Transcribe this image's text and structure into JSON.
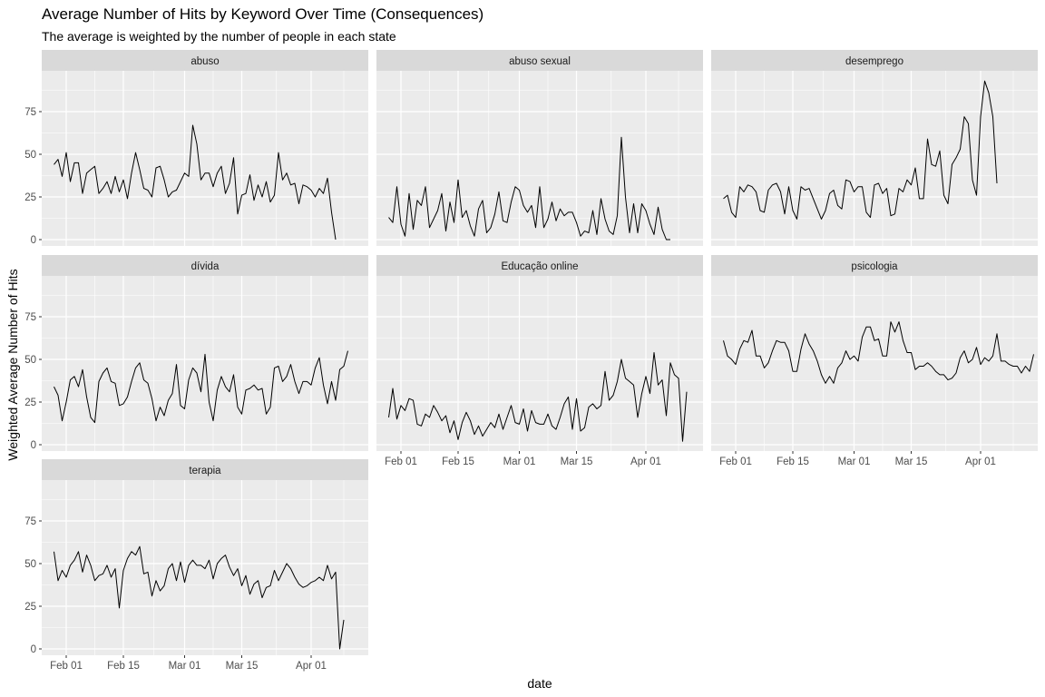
{
  "chart_data": {
    "type": "line",
    "title": "Average Number of Hits by Keyword Over Time (Consequences)",
    "subtitle": "The average is weighted by the number of people in each state",
    "xlabel": "date",
    "ylabel": "Weighted Average Number of Hits",
    "x_start": "2020-01-29",
    "x_ticks": [
      {
        "label": "Feb 01",
        "date": "2020-02-01"
      },
      {
        "label": "Feb 15",
        "date": "2020-02-15"
      },
      {
        "label": "Mar 01",
        "date": "2020-03-01"
      },
      {
        "label": "Mar 15",
        "date": "2020-03-15"
      },
      {
        "label": "Apr 01",
        "date": "2020-04-01"
      }
    ],
    "y_ticks": [
      0,
      25,
      50,
      75
    ],
    "ylim": [
      -3,
      100
    ],
    "grid": true,
    "series_color": "#000000",
    "panel_background": "#ebebeb",
    "strip_background": "#d9d9d9",
    "panels": [
      {
        "name": "abuso",
        "values": [
          44,
          47,
          37,
          51,
          34,
          45,
          45,
          27,
          39,
          41,
          43,
          27,
          30,
          34,
          27,
          37,
          28,
          35,
          24,
          39,
          51,
          41,
          30,
          29,
          25,
          42,
          43,
          35,
          25,
          28,
          29,
          34,
          39,
          37,
          67,
          56,
          35,
          39,
          39,
          31,
          39,
          43,
          27,
          33,
          48,
          15,
          26,
          27,
          38,
          23,
          32,
          25,
          34,
          22,
          26,
          51,
          35,
          39,
          32,
          33,
          21,
          32,
          31,
          29,
          25,
          30,
          27,
          36,
          16,
          0
        ]
      },
      {
        "name": "abuso sexual",
        "values": [
          13,
          10,
          31,
          9,
          2,
          27,
          6,
          23,
          20,
          31,
          7,
          12,
          17,
          27,
          5,
          22,
          10,
          35,
          13,
          17,
          8,
          2,
          18,
          23,
          4,
          7,
          15,
          28,
          11,
          10,
          22,
          31,
          29,
          20,
          16,
          20,
          7,
          31,
          7,
          12,
          22,
          11,
          18,
          14,
          16,
          16,
          10,
          2,
          5,
          4,
          17,
          3,
          24,
          12,
          5,
          3,
          14,
          60,
          25,
          4,
          21,
          4,
          21,
          17,
          9,
          3,
          19,
          6,
          0,
          0
        ]
      },
      {
        "name": "desemprego",
        "values": [
          24,
          26,
          16,
          13,
          31,
          28,
          32,
          31,
          28,
          17,
          16,
          29,
          32,
          33,
          28,
          15,
          31,
          17,
          12,
          31,
          29,
          30,
          24,
          18,
          12,
          17,
          27,
          29,
          20,
          18,
          35,
          34,
          28,
          31,
          31,
          16,
          13,
          32,
          33,
          27,
          30,
          14,
          15,
          30,
          28,
          35,
          32,
          42,
          24,
          24,
          59,
          44,
          43,
          52,
          26,
          21,
          44,
          48,
          53,
          72,
          68,
          35,
          26,
          72,
          93,
          86,
          72,
          33
        ]
      },
      {
        "name": "dívida",
        "values": [
          34,
          29,
          14,
          25,
          38,
          40,
          34,
          44,
          28,
          16,
          13,
          37,
          42,
          45,
          37,
          36,
          23,
          24,
          28,
          37,
          45,
          48,
          38,
          36,
          27,
          14,
          22,
          17,
          26,
          30,
          47,
          23,
          21,
          38,
          45,
          42,
          31,
          53,
          25,
          14,
          32,
          40,
          34,
          31,
          41,
          22,
          18,
          32,
          33,
          35,
          32,
          33,
          18,
          22,
          45,
          46,
          37,
          40,
          47,
          37,
          30,
          37,
          37,
          35,
          45,
          51,
          35,
          24,
          37,
          26,
          44,
          46,
          55
        ]
      },
      {
        "name": "Educação online",
        "values": [
          16,
          33,
          15,
          23,
          20,
          27,
          26,
          12,
          11,
          18,
          16,
          23,
          19,
          14,
          17,
          7,
          14,
          3,
          13,
          19,
          14,
          6,
          11,
          5,
          9,
          13,
          10,
          18,
          9,
          16,
          23,
          13,
          12,
          21,
          8,
          20,
          13,
          12,
          12,
          18,
          11,
          9,
          16,
          24,
          28,
          9,
          27,
          8,
          10,
          22,
          24,
          21,
          23,
          43,
          26,
          29,
          37,
          50,
          39,
          37,
          35,
          16,
          30,
          40,
          30,
          54,
          35,
          38,
          17,
          48,
          41,
          39,
          2,
          31
        ]
      },
      {
        "name": "psicologia",
        "values": [
          61,
          52,
          50,
          47,
          56,
          61,
          60,
          67,
          52,
          52,
          45,
          48,
          55,
          61,
          60,
          60,
          55,
          43,
          43,
          56,
          65,
          59,
          55,
          49,
          41,
          36,
          40,
          36,
          45,
          48,
          55,
          50,
          52,
          49,
          63,
          69,
          69,
          61,
          62,
          52,
          52,
          72,
          66,
          72,
          61,
          54,
          54,
          44,
          46,
          46,
          48,
          46,
          43,
          41,
          41,
          38,
          39,
          42,
          51,
          55,
          48,
          50,
          57,
          47,
          51,
          49,
          52,
          65,
          49,
          49,
          47,
          46,
          46,
          42,
          46,
          43,
          53
        ]
      },
      {
        "name": "terapia",
        "values": [
          57,
          40,
          46,
          42,
          49,
          52,
          57,
          45,
          55,
          49,
          40,
          43,
          44,
          49,
          42,
          47,
          24,
          46,
          53,
          57,
          55,
          60,
          44,
          45,
          31,
          40,
          34,
          37,
          47,
          50,
          40,
          51,
          39,
          49,
          52,
          49,
          49,
          47,
          52,
          41,
          50,
          53,
          55,
          48,
          43,
          47,
          37,
          43,
          32,
          38,
          40,
          30,
          36,
          37,
          46,
          40,
          45,
          50,
          47,
          42,
          38,
          36,
          37,
          39,
          40,
          42,
          40,
          49,
          41,
          45,
          0,
          17
        ]
      }
    ]
  }
}
